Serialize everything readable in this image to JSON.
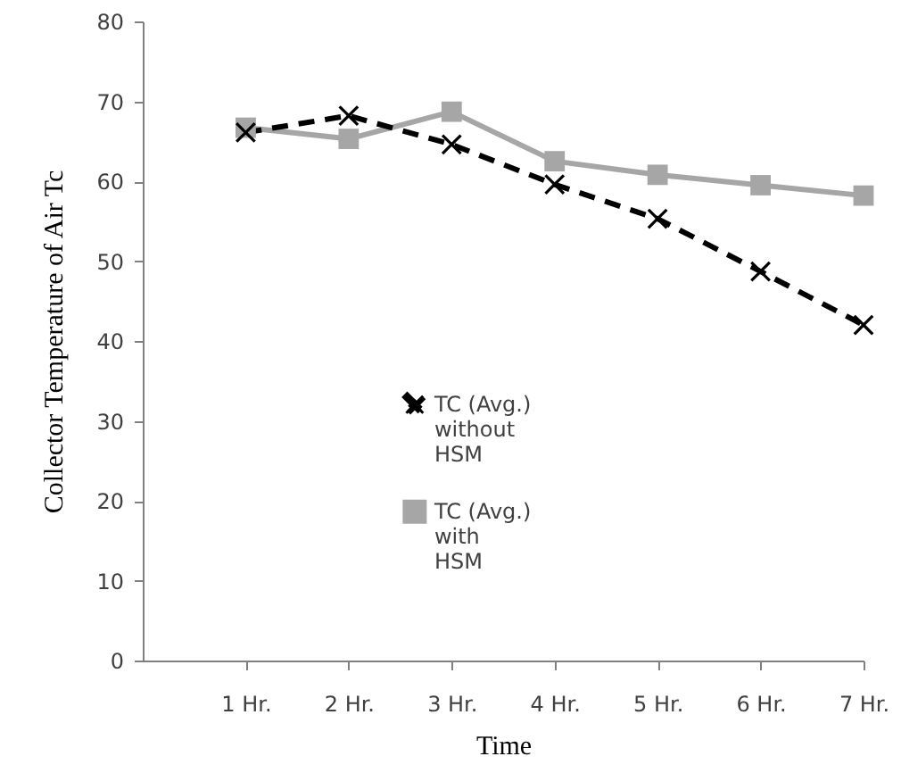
{
  "chart_data": {
    "type": "line",
    "xlabel": "Time",
    "ylabel": "Collector Temperature of Air Tc",
    "categories": [
      "1 Hr.",
      "2 Hr.",
      "3 Hr.",
      "4 Hr.",
      "5 Hr.",
      "6 Hr.",
      "7 Hr."
    ],
    "series": [
      {
        "name": "TC (Avg.) without HSM",
        "color": "#000000",
        "marker": "cross",
        "line_style": "dashed",
        "values": [
          66.1,
          68.2,
          64.6,
          59.6,
          55.3,
          48.7,
          42.0
        ]
      },
      {
        "name": "TC (Avg.) with HSM",
        "color": "#a6a6a6",
        "marker": "square",
        "line_style": "solid",
        "values": [
          66.7,
          65.3,
          68.7,
          62.5,
          60.8,
          59.5,
          58.2
        ]
      }
    ],
    "ylim": [
      0,
      80
    ],
    "yticks": [
      0,
      10,
      20,
      30,
      40,
      50,
      60,
      70,
      80
    ],
    "grid": false,
    "legend": "center"
  }
}
